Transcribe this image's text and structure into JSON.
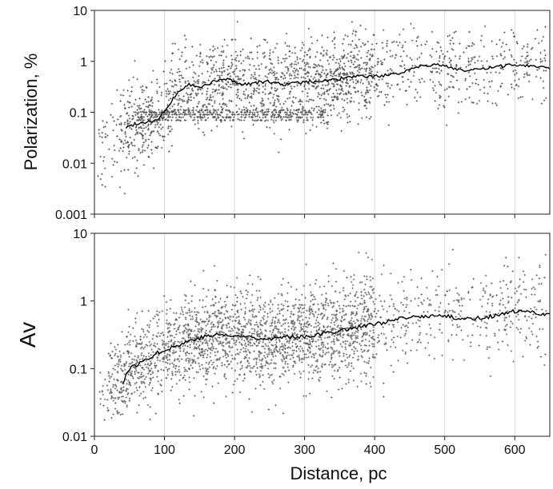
{
  "figure": {
    "xlabel": "Distance, pc"
  },
  "chart_data": [
    {
      "type": "scatter",
      "title": "",
      "xlabel": "",
      "ylabel": "Polarization, %",
      "xlim": [
        0,
        650
      ],
      "ylim": [
        0.001,
        10
      ],
      "yscale": "log",
      "grid": "vertical",
      "x_ticks": [
        "0",
        "100",
        "200",
        "300",
        "400",
        "500",
        "600"
      ],
      "y_ticks": [
        "0.001",
        "0.01",
        "0.1",
        "1",
        "10"
      ],
      "scatter_marker": "+",
      "scatter_color": "#333333",
      "line_color": "#000000",
      "running_mean": {
        "x": [
          45,
          60,
          75,
          90,
          105,
          120,
          135,
          150,
          170,
          190,
          210,
          230,
          250,
          270,
          290,
          310,
          330,
          350,
          370,
          390,
          410,
          430,
          450,
          470,
          490,
          510,
          530,
          550,
          570,
          590,
          610,
          630,
          650
        ],
        "y": [
          0.05,
          0.06,
          0.065,
          0.07,
          0.12,
          0.25,
          0.35,
          0.3,
          0.4,
          0.45,
          0.35,
          0.38,
          0.4,
          0.35,
          0.38,
          0.4,
          0.42,
          0.45,
          0.5,
          0.5,
          0.52,
          0.55,
          0.7,
          0.85,
          0.85,
          0.75,
          0.65,
          0.7,
          0.75,
          0.85,
          0.85,
          0.8,
          0.75
        ]
      }
    },
    {
      "type": "scatter",
      "title": "",
      "xlabel": "Distance, pc",
      "ylabel": "Av",
      "xlim": [
        0,
        650
      ],
      "ylim": [
        0.01,
        10
      ],
      "yscale": "log",
      "grid": "vertical",
      "x_ticks": [
        "0",
        "100",
        "200",
        "300",
        "400",
        "500",
        "600"
      ],
      "y_ticks": [
        "0.01",
        "0.1",
        "1",
        "10"
      ],
      "scatter_marker": "+",
      "scatter_color": "#444444",
      "line_color": "#000000",
      "running_mean": {
        "x": [
          40,
          50,
          65,
          80,
          100,
          120,
          140,
          160,
          180,
          200,
          220,
          240,
          260,
          280,
          300,
          320,
          340,
          360,
          380,
          400,
          420,
          440,
          460,
          480,
          500,
          520,
          540,
          560,
          580,
          600,
          620,
          640,
          650
        ],
        "y": [
          0.06,
          0.1,
          0.12,
          0.15,
          0.19,
          0.22,
          0.27,
          0.3,
          0.32,
          0.3,
          0.3,
          0.28,
          0.28,
          0.3,
          0.3,
          0.32,
          0.35,
          0.38,
          0.42,
          0.45,
          0.5,
          0.55,
          0.58,
          0.6,
          0.6,
          0.55,
          0.55,
          0.58,
          0.62,
          0.7,
          0.68,
          0.65,
          0.63
        ]
      }
    }
  ]
}
